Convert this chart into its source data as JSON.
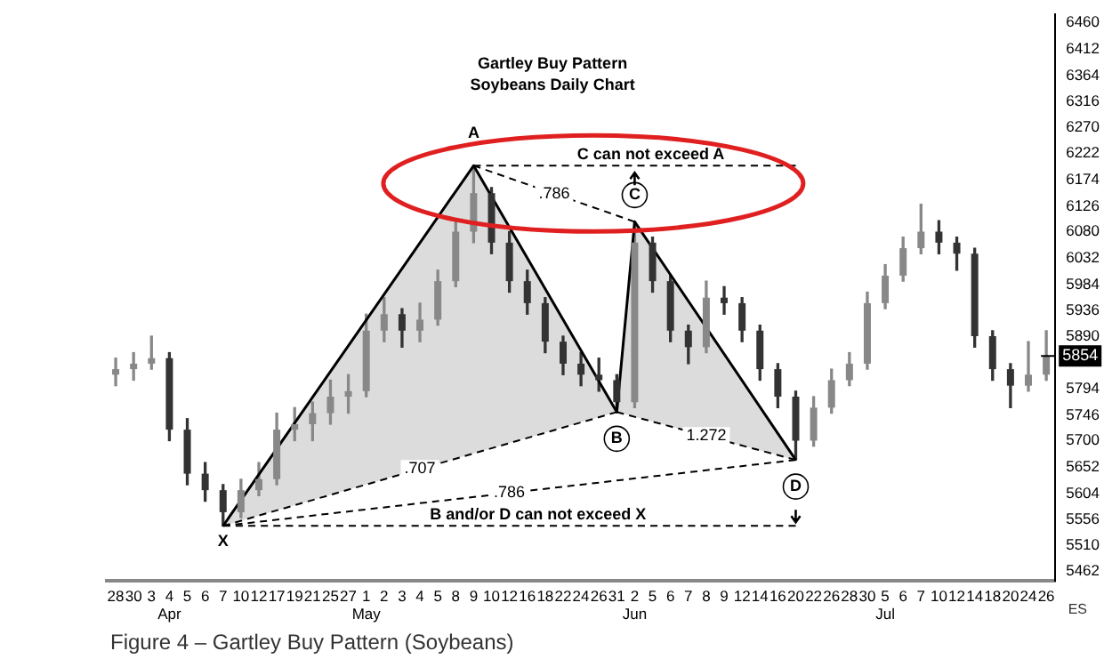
{
  "chart_data": {
    "type": "candlestick",
    "title": "Gartley Buy Pattern",
    "subtitle": "Soybeans Daily Chart",
    "categories": [
      "28",
      "30",
      "3",
      "4\nApr",
      "5",
      "6",
      "7",
      "10",
      "12",
      "17",
      "19",
      "21",
      "25",
      "27",
      "1\nMay",
      "2",
      "3",
      "4",
      "5",
      "8",
      "9",
      "10",
      "12",
      "16",
      "18",
      "22",
      "24",
      "26",
      "31",
      "2\nJun",
      "5",
      "6",
      "7",
      "8",
      "9",
      "12",
      "14",
      "16",
      "20",
      "22",
      "26",
      "28",
      "30",
      "5\nJul",
      "6",
      "7",
      "10",
      "12",
      "14",
      "18",
      "20",
      "24",
      "26"
    ],
    "colors": [
      "#888888",
      "#888888",
      "#888888",
      "#333333",
      "#333333",
      "#333333",
      "#333333",
      "#888888",
      "#888888",
      "#888888",
      "#888888",
      "#888888",
      "#888888",
      "#888888",
      "#888888",
      "#888888",
      "#333333",
      "#888888",
      "#888888",
      "#888888",
      "#888888",
      "#333333",
      "#333333",
      "#333333",
      "#333333",
      "#333333",
      "#333333",
      "#333333",
      "#333333",
      "#888888",
      "#333333",
      "#333333",
      "#333333",
      "#888888",
      "#333333",
      "#333333",
      "#333333",
      "#333333",
      "#333333",
      "#888888",
      "#888888",
      "#888888",
      "#888888",
      "#888888",
      "#888888",
      "#888888",
      "#333333",
      "#333333",
      "#333333",
      "#333333",
      "#333333",
      "#888888",
      "#888888"
    ],
    "ohlc": [
      [
        5820,
        5850,
        5800,
        5830
      ],
      [
        5830,
        5860,
        5810,
        5840
      ],
      [
        5840,
        5890,
        5830,
        5850
      ],
      [
        5850,
        5860,
        5700,
        5720
      ],
      [
        5720,
        5740,
        5620,
        5640
      ],
      [
        5640,
        5660,
        5590,
        5610
      ],
      [
        5610,
        5620,
        5545,
        5570
      ],
      [
        5570,
        5630,
        5560,
        5610
      ],
      [
        5610,
        5660,
        5600,
        5630
      ],
      [
        5630,
        5750,
        5620,
        5720
      ],
      [
        5720,
        5760,
        5700,
        5730
      ],
      [
        5730,
        5770,
        5700,
        5750
      ],
      [
        5750,
        5810,
        5730,
        5780
      ],
      [
        5780,
        5820,
        5750,
        5790
      ],
      [
        5790,
        5930,
        5780,
        5900
      ],
      [
        5900,
        5960,
        5880,
        5930
      ],
      [
        5930,
        5940,
        5870,
        5900
      ],
      [
        5900,
        5950,
        5880,
        5920
      ],
      [
        5920,
        6010,
        5910,
        5990
      ],
      [
        5990,
        6100,
        5980,
        6080
      ],
      [
        6080,
        6200,
        6060,
        6150
      ],
      [
        6150,
        6160,
        6040,
        6060
      ],
      [
        6060,
        6080,
        5970,
        5990
      ],
      [
        5990,
        6010,
        5930,
        5950
      ],
      [
        5950,
        5960,
        5860,
        5880
      ],
      [
        5880,
        5890,
        5820,
        5840
      ],
      [
        5840,
        5860,
        5800,
        5820
      ],
      [
        5820,
        5850,
        5790,
        5810
      ],
      [
        5810,
        5820,
        5752,
        5770
      ],
      [
        5770,
        6098,
        5760,
        6060
      ],
      [
        6060,
        6070,
        5970,
        5990
      ],
      [
        5990,
        6000,
        5880,
        5900
      ],
      [
        5900,
        5910,
        5840,
        5870
      ],
      [
        5870,
        5990,
        5860,
        5960
      ],
      [
        5960,
        5980,
        5930,
        5950
      ],
      [
        5950,
        5960,
        5880,
        5900
      ],
      [
        5900,
        5910,
        5810,
        5830
      ],
      [
        5830,
        5840,
        5760,
        5780
      ],
      [
        5780,
        5790,
        5665,
        5700
      ],
      [
        5700,
        5780,
        5690,
        5760
      ],
      [
        5760,
        5830,
        5750,
        5810
      ],
      [
        5810,
        5860,
        5800,
        5840
      ],
      [
        5840,
        5970,
        5830,
        5950
      ],
      [
        5950,
        6020,
        5940,
        6000
      ],
      [
        6000,
        6070,
        5990,
        6050
      ],
      [
        6050,
        6130,
        6040,
        6080
      ],
      [
        6080,
        6100,
        6040,
        6060
      ],
      [
        6060,
        6070,
        6010,
        6040
      ],
      [
        6040,
        6050,
        5870,
        5890
      ],
      [
        5890,
        5900,
        5810,
        5830
      ],
      [
        5830,
        5840,
        5760,
        5800
      ],
      [
        5800,
        5880,
        5790,
        5820
      ],
      [
        5820,
        5900,
        5810,
        5854
      ]
    ],
    "series": [
      {
        "type": "line",
        "color": "#000000",
        "line_style": "solid",
        "x": [
          "7",
          "9",
          "31",
          "2\nJun",
          "20"
        ],
        "values": [
          5545,
          6200,
          5752,
          6098,
          5665
        ],
        "value_labels": [
          "X",
          "A",
          "B",
          "C",
          "D"
        ]
      },
      {
        "name": ".707",
        "type": "line",
        "color": "#000000",
        "line_style": "dashed",
        "x": [
          "7",
          "31"
        ],
        "values": [
          5545,
          5752
        ]
      },
      {
        "name": ".786",
        "type": "line",
        "color": "#000000",
        "line_style": "dashed",
        "x": [
          "7",
          "20"
        ],
        "values": [
          5545,
          5665
        ]
      },
      {
        "name": ".786",
        "type": "line",
        "color": "#000000",
        "line_style": "dashed",
        "x": [
          "9",
          "2\nJun"
        ],
        "values": [
          6200,
          6098
        ]
      },
      {
        "name": "1.272",
        "type": "line",
        "color": "#000000",
        "line_style": "dashed",
        "x": [
          "31",
          "20"
        ],
        "values": [
          5752,
          5665
        ]
      },
      {
        "name": "C can not exceed A",
        "type": "line",
        "color": "#000000",
        "line_style": "dashed",
        "x": [
          "9",
          "20"
        ],
        "values": [
          6200,
          6200
        ]
      },
      {
        "name": "B and/or D can not exceed X",
        "type": "line",
        "color": "#000000",
        "line_style": "dashed",
        "x": [
          "7",
          "20"
        ],
        "values": [
          5545,
          5545
        ]
      }
    ],
    "ylim": [
      5445,
      6475
    ],
    "yticks": [
      5462,
      5510,
      5556,
      5604,
      5652,
      5700,
      5746,
      5794,
      5890,
      5936,
      5984,
      6032,
      6080,
      6126,
      6174,
      6222,
      6270,
      6316,
      6364,
      6412,
      6460
    ],
    "ref_lines": [
      {
        "axis": "y",
        "value": 5854,
        "label": "5854"
      }
    ],
    "annotations": [
      "Figure 4 – Gartley Buy Pattern (Soybeans)",
      "ES"
    ],
    "grid": false,
    "legend": false,
    "marker": "none"
  }
}
